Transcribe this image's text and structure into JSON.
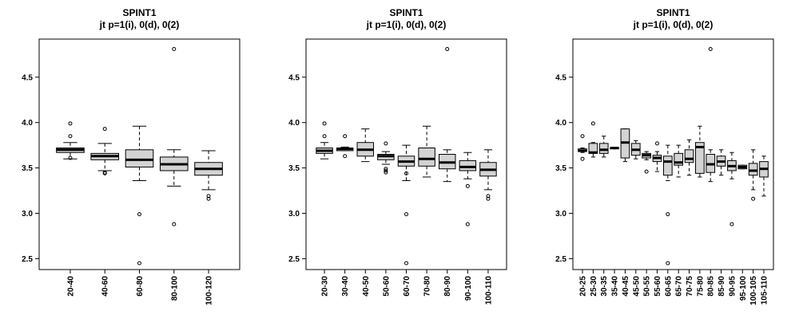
{
  "chart_data": [
    {
      "type": "box",
      "title": "SPINT1",
      "subtitle": "jt p=1(i), 0(d), 0(2)",
      "ylim": [
        2.38,
        4.92
      ],
      "yticks": [
        2.5,
        3.0,
        3.5,
        4.0,
        4.5
      ],
      "ytick_labels": [
        "2.5",
        "3.0",
        "3.5",
        "4.0",
        "4.5"
      ],
      "box_fill": "#d3d3d3",
      "categories": [
        "20-40",
        "40-60",
        "60-80",
        "80-100",
        "100-120"
      ],
      "boxes": [
        {
          "q1": 3.67,
          "median": 3.7,
          "q3": 3.72,
          "wlo": 3.6,
          "whi": 3.78,
          "outliers": [
            3.85,
            3.99,
            3.61
          ]
        },
        {
          "q1": 3.59,
          "median": 3.63,
          "q3": 3.66,
          "wlo": 3.47,
          "whi": 3.77,
          "outliers": [
            3.93,
            3.44,
            3.45
          ]
        },
        {
          "q1": 3.51,
          "median": 3.59,
          "q3": 3.7,
          "wlo": 3.36,
          "whi": 3.96,
          "outliers": [
            2.99,
            2.45
          ]
        },
        {
          "q1": 3.47,
          "median": 3.54,
          "q3": 3.62,
          "wlo": 3.3,
          "whi": 3.7,
          "outliers": [
            4.81,
            2.88
          ]
        },
        {
          "q1": 3.42,
          "median": 3.49,
          "q3": 3.56,
          "wlo": 3.26,
          "whi": 3.69,
          "outliers": [
            3.19,
            3.16
          ]
        }
      ]
    },
    {
      "type": "box",
      "title": "SPINT1",
      "subtitle": "jt p=1(i), 0(d), 0(2)",
      "ylim": [
        2.38,
        4.92
      ],
      "yticks": [
        2.5,
        3.0,
        3.5,
        4.0,
        4.5
      ],
      "ytick_labels": [
        "2.5",
        "3.0",
        "3.5",
        "4.0",
        "4.5"
      ],
      "box_fill": "#d3d3d3",
      "categories": [
        "20-30",
        "30-40",
        "40-50",
        "50-60",
        "60-70",
        "70-80",
        "80-90",
        "90-100",
        "100-110"
      ],
      "boxes": [
        {
          "q1": 3.66,
          "median": 3.69,
          "q3": 3.72,
          "wlo": 3.6,
          "whi": 3.78,
          "outliers": [
            3.85,
            3.99
          ]
        },
        {
          "q1": 3.69,
          "median": 3.71,
          "q3": 3.72,
          "wlo": 3.69,
          "whi": 3.73,
          "outliers": [
            3.85,
            3.63
          ]
        },
        {
          "q1": 3.63,
          "median": 3.7,
          "q3": 3.78,
          "wlo": 3.57,
          "whi": 3.93,
          "outliers": []
        },
        {
          "q1": 3.59,
          "median": 3.63,
          "q3": 3.65,
          "wlo": 3.54,
          "whi": 3.68,
          "outliers": [
            3.77,
            3.49,
            3.47,
            3.45
          ]
        },
        {
          "q1": 3.52,
          "median": 3.57,
          "q3": 3.63,
          "wlo": 3.36,
          "whi": 3.75,
          "outliers": [
            2.99,
            2.45,
            3.44
          ]
        },
        {
          "q1": 3.52,
          "median": 3.6,
          "q3": 3.72,
          "wlo": 3.4,
          "whi": 3.96,
          "outliers": []
        },
        {
          "q1": 3.49,
          "median": 3.56,
          "q3": 3.65,
          "wlo": 3.35,
          "whi": 3.7,
          "outliers": [
            4.81
          ]
        },
        {
          "q1": 3.47,
          "median": 3.51,
          "q3": 3.58,
          "wlo": 3.38,
          "whi": 3.67,
          "outliers": [
            3.3,
            2.88
          ]
        },
        {
          "q1": 3.41,
          "median": 3.48,
          "q3": 3.56,
          "wlo": 3.26,
          "whi": 3.7,
          "outliers": [
            3.19,
            3.16
          ]
        }
      ]
    },
    {
      "type": "box",
      "title": "SPINT1",
      "subtitle": "jt p=1(i), 0(d), 0(2)",
      "ylim": [
        2.38,
        4.92
      ],
      "yticks": [
        2.5,
        3.0,
        3.5,
        4.0,
        4.5
      ],
      "ytick_labels": [
        "2.5",
        "3.0",
        "3.5",
        "4.0",
        "4.5"
      ],
      "box_fill": "#d3d3d3",
      "categories": [
        "20-25",
        "25-30",
        "30-35",
        "35-40",
        "40-45",
        "45-50",
        "50-55",
        "55-60",
        "60-65",
        "65-70",
        "70-75",
        "75-80",
        "80-85",
        "85-90",
        "90-95",
        "95-100",
        "100-105",
        "105-110"
      ],
      "boxes": [
        {
          "q1": 3.68,
          "median": 3.69,
          "q3": 3.71,
          "wlo": 3.67,
          "whi": 3.72,
          "outliers": [
            3.85,
            3.6
          ]
        },
        {
          "q1": 3.66,
          "median": 3.67,
          "q3": 3.77,
          "wlo": 3.62,
          "whi": 3.78,
          "outliers": [
            3.99
          ]
        },
        {
          "q1": 3.66,
          "median": 3.7,
          "q3": 3.77,
          "wlo": 3.62,
          "whi": 3.85,
          "outliers": []
        },
        {
          "q1": 3.71,
          "median": 3.72,
          "q3": 3.72,
          "wlo": 3.71,
          "whi": 3.72,
          "outliers": []
        },
        {
          "q1": 3.61,
          "median": 3.78,
          "q3": 3.93,
          "wlo": 3.57,
          "whi": 3.93,
          "outliers": []
        },
        {
          "q1": 3.64,
          "median": 3.7,
          "q3": 3.77,
          "wlo": 3.6,
          "whi": 3.8,
          "outliers": []
        },
        {
          "q1": 3.61,
          "median": 3.64,
          "q3": 3.66,
          "wlo": 3.59,
          "whi": 3.68,
          "outliers": [
            3.46
          ]
        },
        {
          "q1": 3.57,
          "median": 3.61,
          "q3": 3.64,
          "wlo": 3.46,
          "whi": 3.68,
          "outliers": [
            3.77
          ]
        },
        {
          "q1": 3.42,
          "median": 3.57,
          "q3": 3.63,
          "wlo": 3.36,
          "whi": 3.75,
          "outliers": [
            2.99,
            2.45
          ]
        },
        {
          "q1": 3.53,
          "median": 3.56,
          "q3": 3.66,
          "wlo": 3.4,
          "whi": 3.75,
          "outliers": []
        },
        {
          "q1": 3.56,
          "median": 3.6,
          "q3": 3.7,
          "wlo": 3.42,
          "whi": 3.81,
          "outliers": []
        },
        {
          "q1": 3.44,
          "median": 3.73,
          "q3": 3.78,
          "wlo": 3.4,
          "whi": 3.96,
          "outliers": []
        },
        {
          "q1": 3.45,
          "median": 3.54,
          "q3": 3.65,
          "wlo": 3.35,
          "whi": 3.7,
          "outliers": [
            4.81
          ]
        },
        {
          "q1": 3.52,
          "median": 3.57,
          "q3": 3.63,
          "wlo": 3.42,
          "whi": 3.7,
          "outliers": []
        },
        {
          "q1": 3.47,
          "median": 3.52,
          "q3": 3.58,
          "wlo": 3.38,
          "whi": 3.67,
          "outliers": [
            2.88
          ]
        },
        {
          "q1": 3.49,
          "median": 3.51,
          "q3": 3.53,
          "wlo": 3.49,
          "whi": 3.53,
          "outliers": []
        },
        {
          "q1": 3.42,
          "median": 3.47,
          "q3": 3.55,
          "wlo": 3.26,
          "whi": 3.7,
          "outliers": [
            3.16
          ]
        },
        {
          "q1": 3.4,
          "median": 3.49,
          "q3": 3.57,
          "wlo": 3.19,
          "whi": 3.63,
          "outliers": []
        }
      ]
    }
  ]
}
